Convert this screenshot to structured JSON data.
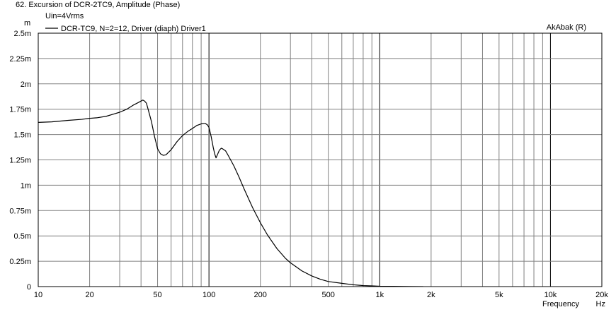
{
  "window": {
    "title": "62. Excursion of DCR-2TC9, Amplitude (Phase)"
  },
  "chart_data": {
    "type": "line",
    "title": "62. Excursion of DCR-2TC9, Amplitude (Phase)",
    "subtitle": "Uin=4Vrms",
    "watermark": "AkAbak (R)",
    "xlabel": "Frequency",
    "xunit": "Hz",
    "ylabel": "m",
    "xscale": "log",
    "xlim": [
      10,
      20000
    ],
    "ylim": [
      0,
      0.0025
    ],
    "grid": true,
    "legend_position": "top-left",
    "x_ticks": [
      {
        "value": 10,
        "label": "10"
      },
      {
        "value": 20,
        "label": "20"
      },
      {
        "value": 50,
        "label": "50"
      },
      {
        "value": 100,
        "label": "100"
      },
      {
        "value": 200,
        "label": "200"
      },
      {
        "value": 500,
        "label": "500"
      },
      {
        "value": 1000,
        "label": "1k"
      },
      {
        "value": 2000,
        "label": "2k"
      },
      {
        "value": 5000,
        "label": "5k"
      },
      {
        "value": 10000,
        "label": "10k"
      },
      {
        "value": 20000,
        "label": "20k"
      }
    ],
    "y_ticks": [
      {
        "value": 0,
        "label": "0"
      },
      {
        "value": 0.00025,
        "label": "0.25m"
      },
      {
        "value": 0.0005,
        "label": "0.5m"
      },
      {
        "value": 0.00075,
        "label": "0.75m"
      },
      {
        "value": 0.001,
        "label": "1m"
      },
      {
        "value": 0.00125,
        "label": "1.25m"
      },
      {
        "value": 0.0015,
        "label": "1.5m"
      },
      {
        "value": 0.00175,
        "label": "1.75m"
      },
      {
        "value": 0.002,
        "label": "2m"
      },
      {
        "value": 0.00225,
        "label": "2.25m"
      },
      {
        "value": 0.0025,
        "label": "2.5m"
      }
    ],
    "series": [
      {
        "name": "DCR-TC9, N=2=12, Driver (diaph) Driver1",
        "color": "#000000",
        "x": [
          10,
          12,
          15,
          18,
          20,
          22,
          25,
          28,
          30,
          33,
          36,
          38,
          40,
          41,
          42,
          43,
          44,
          46,
          48,
          50,
          52,
          54,
          56,
          60,
          65,
          70,
          75,
          80,
          85,
          90,
          93,
          95,
          98,
          100,
          103,
          106,
          108,
          110,
          112,
          115,
          118,
          120,
          125,
          130,
          140,
          150,
          160,
          180,
          200,
          220,
          250,
          280,
          300,
          350,
          400,
          450,
          500,
          600,
          700,
          800,
          900,
          1000,
          1200,
          1500,
          1800
        ],
        "y": [
          0.00162,
          0.001625,
          0.00164,
          0.00165,
          0.00166,
          0.001665,
          0.00168,
          0.001705,
          0.00172,
          0.00175,
          0.00179,
          0.00181,
          0.00183,
          0.00184,
          0.00183,
          0.00181,
          0.00175,
          0.00163,
          0.00148,
          0.00136,
          0.00131,
          0.001295,
          0.0013,
          0.00135,
          0.00143,
          0.00149,
          0.00153,
          0.00156,
          0.00159,
          0.001605,
          0.00161,
          0.00161,
          0.001595,
          0.00157,
          0.00148,
          0.00137,
          0.00131,
          0.00127,
          0.0013,
          0.001345,
          0.001365,
          0.00136,
          0.00134,
          0.00129,
          0.00119,
          0.00108,
          0.00097,
          0.00078,
          0.00063,
          0.00051,
          0.000375,
          0.00028,
          0.000235,
          0.000155,
          0.000105,
          7.2e-05,
          5e-05,
          3.2e-05,
          1.8e-05,
          1e-05,
          7e-06,
          4e-06,
          2.5e-06,
          1e-06,
          5e-07
        ]
      }
    ]
  }
}
